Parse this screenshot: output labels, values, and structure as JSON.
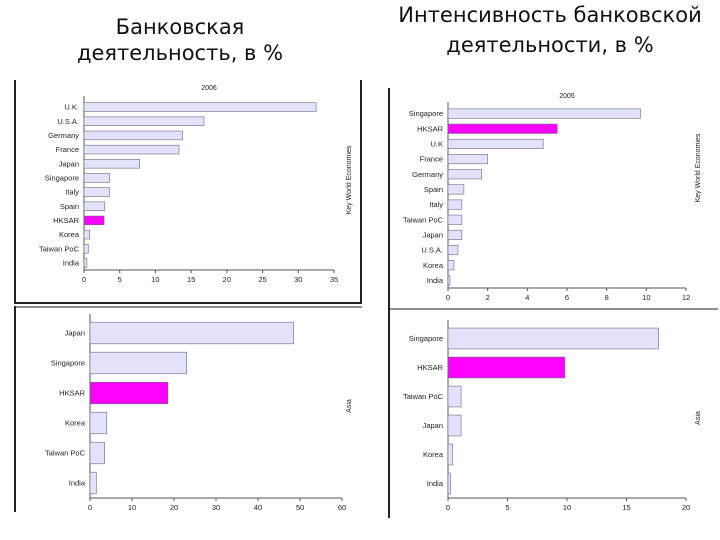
{
  "headings": {
    "left": "Банковская деятельность, в %",
    "right": "Интенсивность банковской деятельности, в %"
  },
  "colors": {
    "bar_default": "#e2e3fb",
    "bar_border": "#6a6a80",
    "bar_highlight": "#ff00ff",
    "axis": "#555555",
    "panel_border": "#222222"
  },
  "chart_data": [
    {
      "type": "bar",
      "orientation": "horizontal",
      "title": "2006",
      "side_label": "Key World Economies",
      "categories": [
        "U.K.",
        "U.S.A.",
        "Germany",
        "France",
        "Japan",
        "Singapore",
        "Italy",
        "Spain",
        "HKSAR",
        "Korea",
        "Taiwan PoC",
        "India"
      ],
      "values": [
        32.5,
        16.8,
        13.8,
        13.3,
        7.8,
        3.6,
        3.6,
        2.9,
        2.8,
        0.8,
        0.6,
        0.4
      ],
      "highlight": "HKSAR",
      "xlim": [
        0,
        35
      ],
      "xticks": [
        "0",
        "5",
        "10",
        "15",
        "20",
        "25",
        "30",
        "35"
      ],
      "grid": false
    },
    {
      "type": "bar",
      "orientation": "horizontal",
      "title": "2005",
      "side_label": "Key World Economies",
      "categories": [
        "Singapore",
        "HKSAR",
        "U.K",
        "France",
        "Germany",
        "Spain",
        "Italy",
        "Taiwan PoC",
        "Japan",
        "U.S.A.",
        "Korea",
        "India"
      ],
      "values": [
        9.7,
        5.5,
        4.8,
        2.0,
        1.7,
        0.8,
        0.7,
        0.7,
        0.7,
        0.5,
        0.3,
        0.1
      ],
      "highlight": "HKSAR",
      "xlim": [
        0,
        12
      ],
      "xticks": [
        "0",
        "2",
        "4",
        "6",
        "8",
        "10",
        "12"
      ],
      "grid": false
    },
    {
      "type": "bar",
      "orientation": "horizontal",
      "side_label": "Asia",
      "categories": [
        "Japan",
        "Singapore",
        "HKSAR",
        "Korea",
        "Taiwan PoC",
        "India"
      ],
      "values": [
        48.5,
        23.0,
        18.5,
        4.0,
        3.5,
        1.5
      ],
      "highlight": "HKSAR",
      "xlim": [
        0,
        60
      ],
      "xticks": [
        "0",
        "10",
        "20",
        "30",
        "40",
        "50",
        "60"
      ],
      "grid": false
    },
    {
      "type": "bar",
      "orientation": "horizontal",
      "side_label": "Asia",
      "categories": [
        "Singapore",
        "HKSAR",
        "Taiwan PoC",
        "Japan",
        "Korea",
        "India"
      ],
      "values": [
        17.7,
        9.8,
        1.1,
        1.1,
        0.4,
        0.2
      ],
      "highlight": "HKSAR",
      "xlim": [
        0,
        20
      ],
      "xticks": [
        "0",
        "5",
        "10",
        "15",
        "20"
      ],
      "grid": false
    }
  ]
}
